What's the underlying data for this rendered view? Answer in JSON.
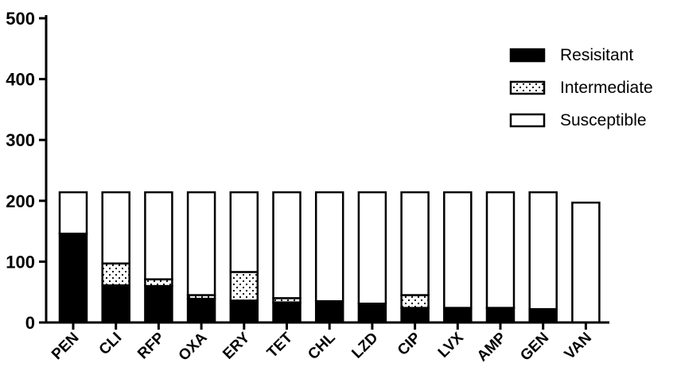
{
  "chart_data": {
    "type": "bar",
    "stacked": true,
    "categories": [
      "PEN",
      "CLI",
      "RFP",
      "OXA",
      "ERY",
      "TET",
      "CHL",
      "LZD",
      "CIP",
      "LVX",
      "AMP",
      "GEN",
      "VAN"
    ],
    "series": [
      {
        "name": "Resisitant",
        "values": [
          146,
          61,
          60,
          39,
          36,
          33,
          35,
          31,
          24,
          24,
          24,
          22,
          0
        ],
        "fill": "solid",
        "color": "#000000"
      },
      {
        "name": "Intermediate",
        "values": [
          0,
          36,
          11,
          6,
          47,
          7,
          0,
          0,
          21,
          0,
          0,
          0,
          0
        ],
        "fill": "dotted",
        "color": "#000000"
      },
      {
        "name": "Susceptible",
        "values": [
          68,
          117,
          143,
          169,
          131,
          174,
          179,
          183,
          169,
          190,
          190,
          192,
          197
        ],
        "fill": "white",
        "color": "#ffffff"
      }
    ],
    "ylim": [
      0,
      500
    ],
    "yticks": [
      "0",
      "100",
      "200",
      "300",
      "400",
      "500"
    ],
    "title": "",
    "xlabel": "",
    "ylabel": "",
    "legend_position": "top-right",
    "grid": false
  }
}
